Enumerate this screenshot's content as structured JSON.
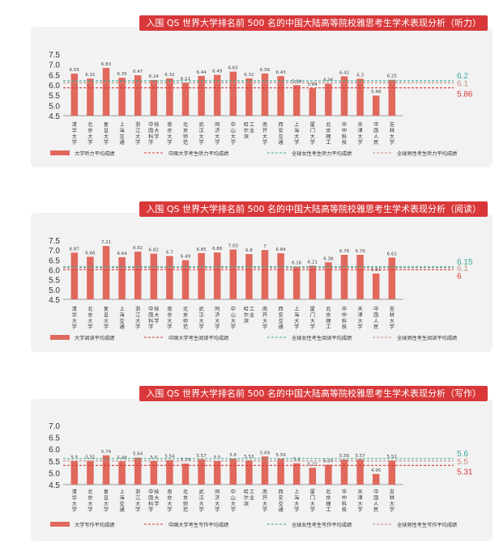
{
  "chart_data": [
    {
      "type": "bar",
      "title": "入围 QS 世界大学排名前 500 名的中国大陆高等院校雅思考生学术表现分析（听力）",
      "categories": [
        "清华大学",
        "北京大学",
        "复旦大学",
        "上海交通",
        "浙江大学",
        "中国科学技大学",
        "南京大学",
        "北京师范",
        "武汉大学",
        "同济大学",
        "中山大学",
        "哈尔滨工业",
        "南开大学",
        "西安交通",
        "上海大学",
        "厦门大学",
        "北京理工",
        "华中科技",
        "天津大学",
        "中国人民",
        "吉林大学"
      ],
      "values": [
        6.55,
        6.31,
        6.83,
        6.35,
        6.47,
        6.24,
        6.32,
        6.11,
        6.44,
        6.49,
        6.65,
        6.32,
        6.56,
        6.43,
        5.99,
        5.84,
        6.06,
        6.42,
        6.3,
        5.48,
        6.25
      ],
      "value_labels": [
        "6.55",
        "6.31",
        "6.83",
        "6.35",
        "6.47",
        "6.24",
        "6.32",
        "6.11",
        "6.44",
        "6.49",
        "6.65",
        "6.32",
        "6.56",
        "6.43",
        "5.99",
        "5.84",
        "6.06",
        "6.42",
        "6.3",
        "5.48",
        "6.25"
      ],
      "ylim": [
        4.5,
        7.5
      ],
      "yticks": [
        "4.5",
        "5.0",
        "5.5",
        "6.0",
        "6.5",
        "7.0",
        "7.5"
      ],
      "ytick_values": [
        4.5,
        5.0,
        5.5,
        6.0,
        6.5,
        7.0,
        7.5
      ],
      "reference_lines": [
        {
          "name": "全球女性考生听力平均成绩",
          "value": 6.2,
          "label": "6.2",
          "color": "#3aa89a"
        },
        {
          "name": "全球男性考生听力平均成绩",
          "value": 6.1,
          "label": "6.1",
          "color": "#c58a7e"
        },
        {
          "name": "中国大学考生听力平均成绩",
          "value": 5.86,
          "label": "5.86",
          "color": "#d9383a"
        }
      ],
      "legend": {
        "bar": "大学听力平均成绩",
        "items": [
          "中国大学考生听力平均成绩",
          "全球女性考生听力平均成绩",
          "全球男性考生听力平均成绩"
        ]
      }
    },
    {
      "type": "bar",
      "title": "入围 QS 世界大学排名前 500 名的中国大陆高等院校雅思考生学术表现分析（阅读）",
      "categories": [
        "清华大学",
        "北京大学",
        "复旦大学",
        "上海交通",
        "浙江大学",
        "中国科学技大学",
        "南京大学",
        "北京师范",
        "武汉大学",
        "同济大学",
        "中山大学",
        "哈尔滨工业",
        "南开大学",
        "西安交通",
        "上海大学",
        "厦门大学",
        "北京理工",
        "华中科技",
        "天津大学",
        "中国人民",
        "吉林大学"
      ],
      "values": [
        6.87,
        6.66,
        7.21,
        6.64,
        6.92,
        6.82,
        6.7,
        6.49,
        6.85,
        6.88,
        7.03,
        6.8,
        7.0,
        6.84,
        6.16,
        6.21,
        6.38,
        6.76,
        6.76,
        5.81,
        6.62
      ],
      "value_labels": [
        "6.87",
        "6.66",
        "7.21",
        "6.64",
        "6.92",
        "6.82",
        "6.7",
        "6.49",
        "6.85",
        "6.88",
        "7.03",
        "6.8",
        "7",
        "6.84",
        "6.16",
        "6.21",
        "6.38",
        "6.76",
        "6.76",
        "5.81",
        "6.62"
      ],
      "ylim": [
        4.5,
        7.5
      ],
      "yticks": [
        "4.5",
        "5.0",
        "5.5",
        "6.0",
        "6.5",
        "7.0",
        "7.5"
      ],
      "ytick_values": [
        4.5,
        5.0,
        5.5,
        6.0,
        6.5,
        7.0,
        7.5
      ],
      "reference_lines": [
        {
          "name": "全球女性考生阅读平均成绩",
          "value": 6.15,
          "label": "6.15",
          "color": "#3aa89a"
        },
        {
          "name": "全球男性考生阅读平均成绩",
          "value": 6.1,
          "label": "6.1",
          "color": "#c58a7e"
        },
        {
          "name": "中国大学考生阅读平均成绩",
          "value": 6.0,
          "label": "6",
          "color": "#d9383a"
        }
      ],
      "legend": {
        "bar": "大学阅读平均成绩",
        "items": [
          "中国大学考生阅读平均成绩",
          "全球女性考生阅读平均成绩",
          "全球男性考生阅读平均成绩"
        ]
      }
    },
    {
      "type": "bar",
      "title": "入围 QS 世界大学排名前 500 名的中国大陆高等院校雅思考生学术表现分析（写作）",
      "categories": [
        "清华大学",
        "北京大学",
        "复旦大学",
        "上海交通",
        "浙江大学",
        "中国科学技大学",
        "南京大学",
        "北京师范",
        "武汉大学",
        "同济大学",
        "中山大学",
        "哈尔滨工业",
        "南开大学",
        "西安交通",
        "上海大学",
        "厦门大学",
        "北京理工",
        "华中科技",
        "天津大学",
        "中国人民",
        "吉林大学"
      ],
      "values": [
        5.5,
        5.51,
        5.74,
        5.48,
        5.64,
        5.5,
        5.54,
        5.39,
        5.57,
        5.5,
        5.6,
        5.53,
        5.69,
        5.59,
        5.4,
        5.21,
        5.34,
        5.56,
        5.57,
        4.95,
        5.52
      ],
      "value_labels": [
        "5.5",
        "5.51",
        "5.74",
        "5.48",
        "5.64",
        "5.5",
        "5.54",
        "5.39",
        "5.57",
        "5.5",
        "5.6",
        "5.53",
        "5.69",
        "5.59",
        "5.4",
        "5.21",
        "5.34",
        "5.56",
        "5.57",
        "4.95",
        "5.52"
      ],
      "ylim": [
        4.5,
        7.0
      ],
      "yticks": [
        "4.5",
        "5.0",
        "5.5",
        "6.0",
        "6.5",
        "7.0"
      ],
      "ytick_values": [
        4.5,
        5.0,
        5.5,
        6.0,
        6.5,
        7.0
      ],
      "reference_lines": [
        {
          "name": "全球女性考生写作平均成绩",
          "value": 5.6,
          "label": "5.6",
          "color": "#3aa89a"
        },
        {
          "name": "全球男性考生写作平均成绩",
          "value": 5.5,
          "label": "5.5",
          "color": "#c58a7e"
        },
        {
          "name": "中国大学考生写作平均成绩",
          "value": 5.31,
          "label": "5.31",
          "color": "#d9383a"
        }
      ],
      "legend": {
        "bar": "大学写作平均成绩",
        "items": [
          "中国大学考生写作平均成绩",
          "全球女性考生写作平均成绩",
          "全球男性考生写作平均成绩"
        ]
      }
    }
  ],
  "colors": {
    "bar": "#e0685d",
    "title_bg": "#d9383a",
    "panel_bg": "#f2f2f2"
  }
}
